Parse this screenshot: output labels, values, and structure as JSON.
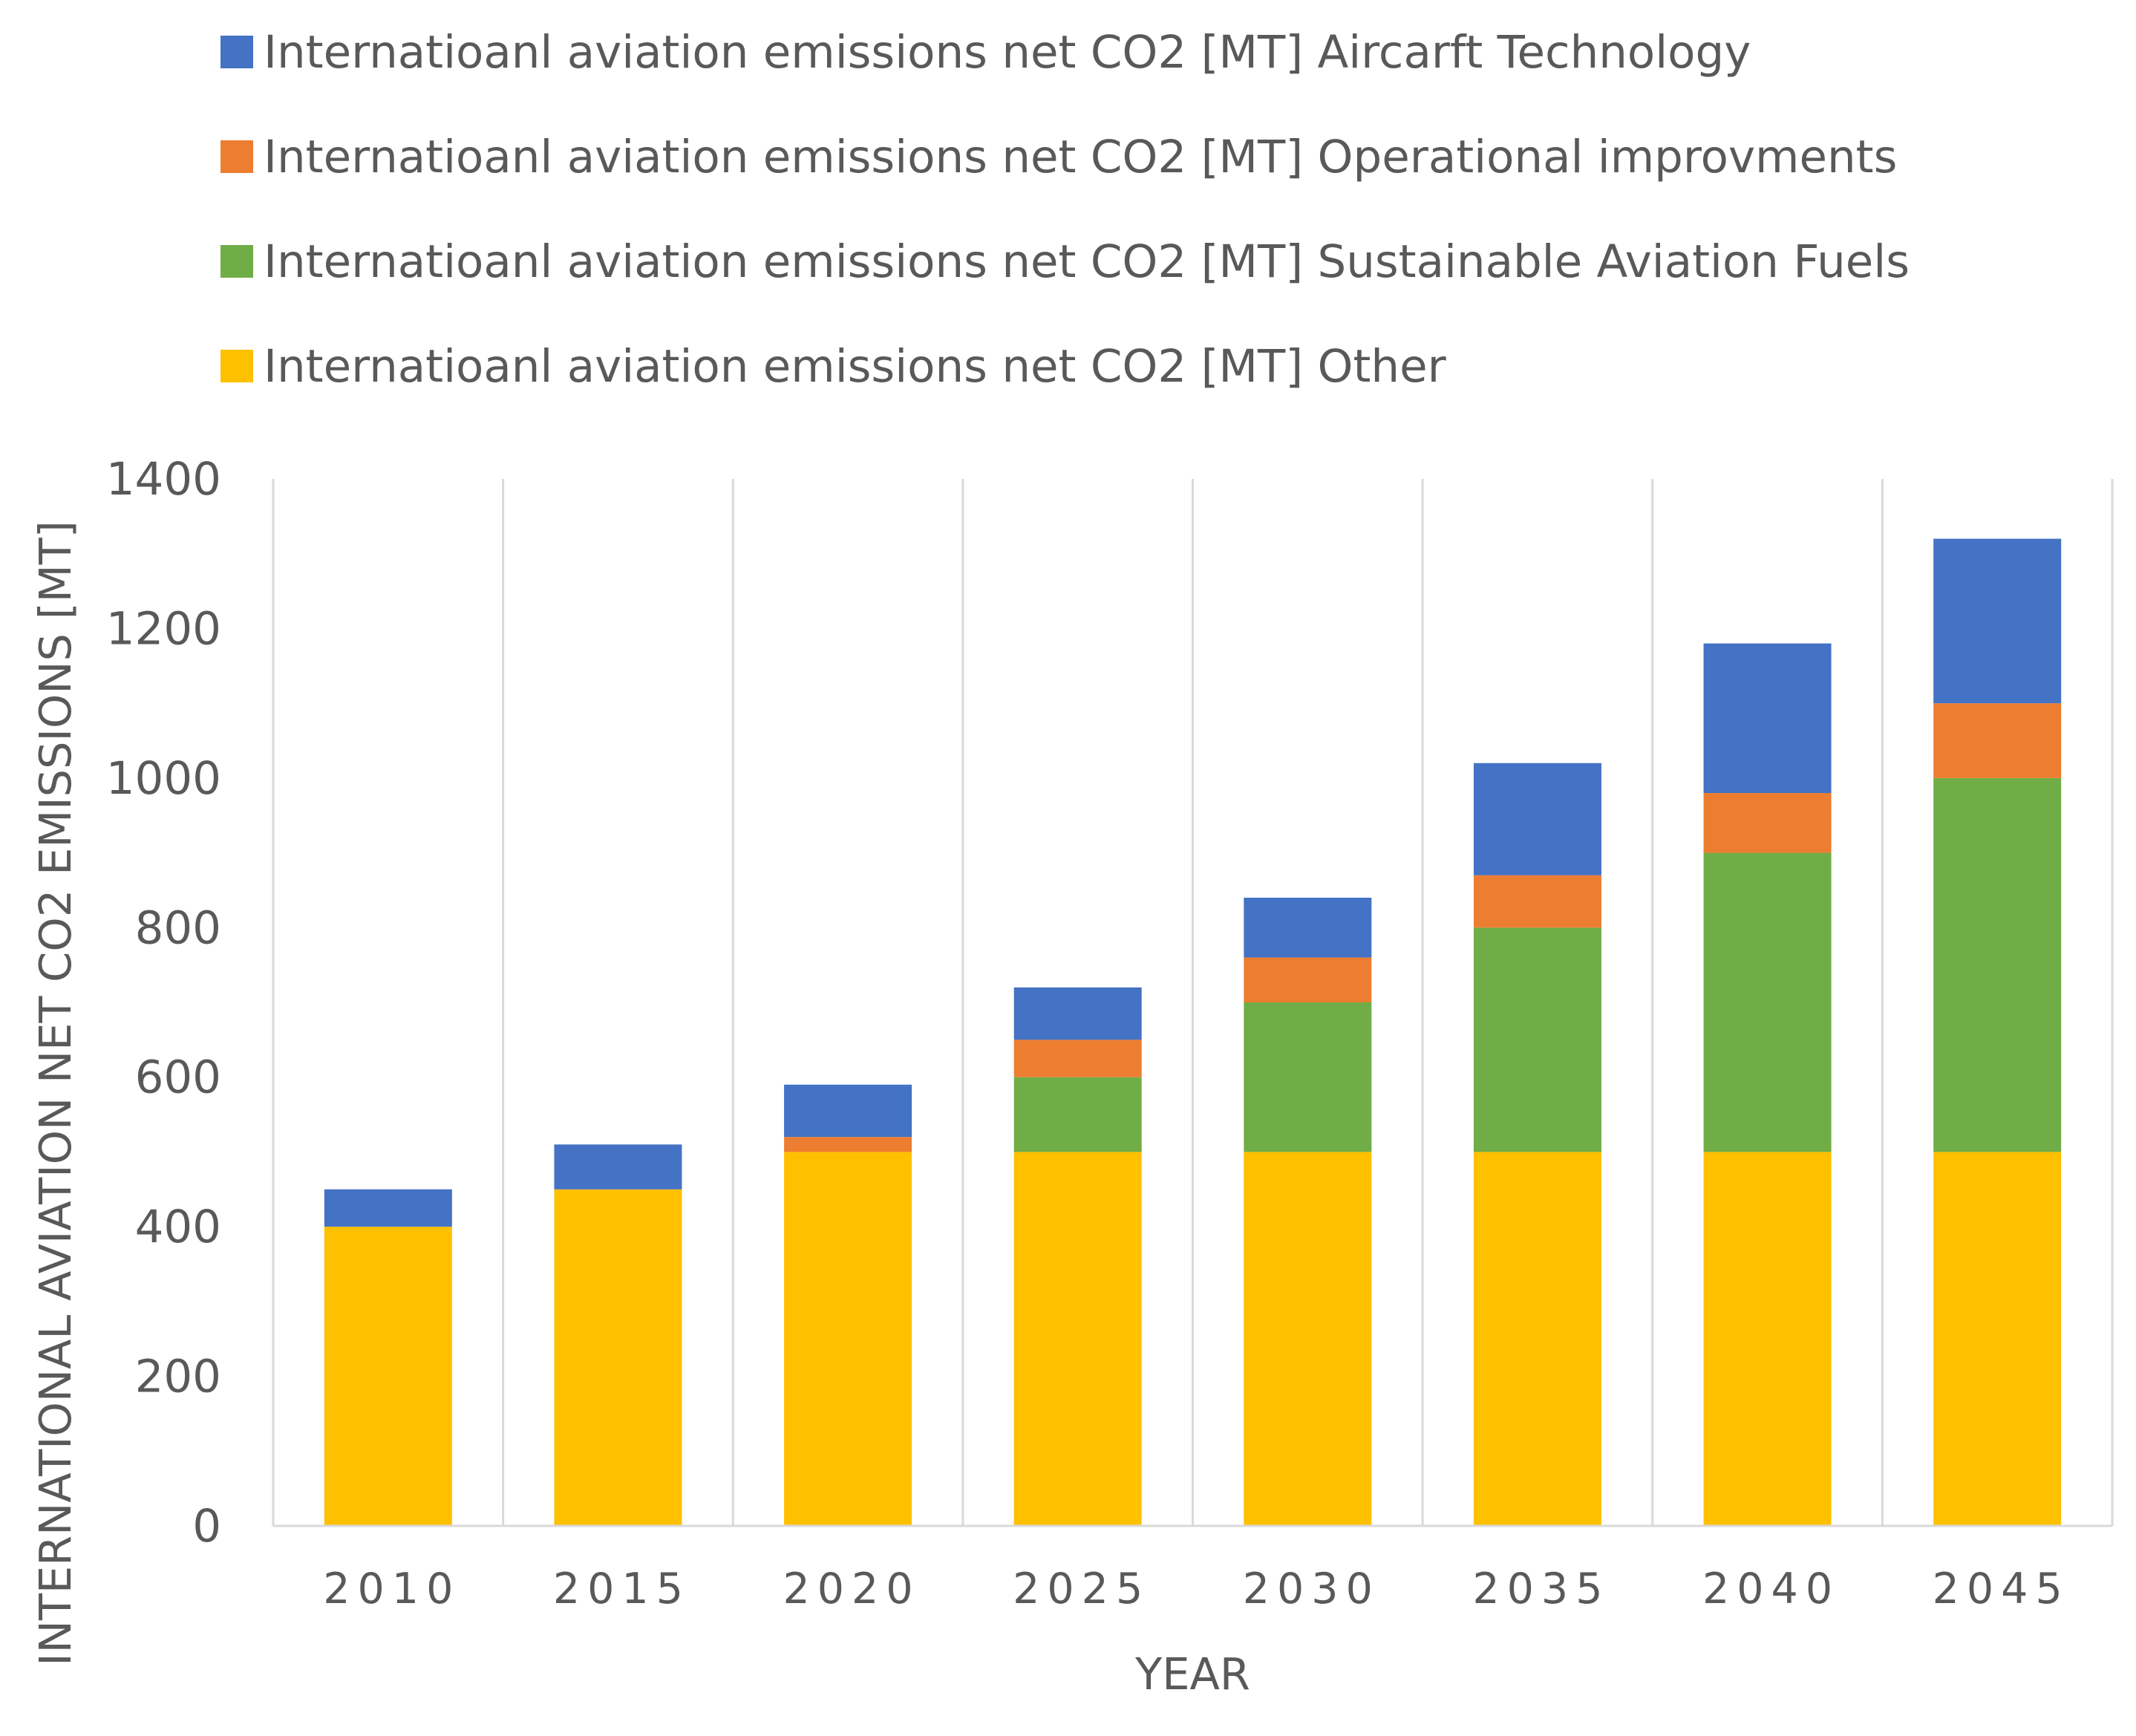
{
  "chart_data": {
    "type": "bar",
    "stacked": true,
    "title": "",
    "xlabel": "YEAR",
    "ylabel": "INTERNATIONAL AVIATION NET CO2 EMISSIONS [MT]",
    "ylim": [
      0,
      1400
    ],
    "yticks": [
      "0",
      "200",
      "400",
      "600",
      "800",
      "1000",
      "1200",
      "1400"
    ],
    "grid": "vertical",
    "legend_position": "top",
    "categories": [
      "2010",
      "2015",
      "2020",
      "2025",
      "2030",
      "2035",
      "2040",
      "2045"
    ],
    "series": [
      {
        "name": "Internatioanl aviation emissions net CO2 [MT] Other",
        "color": "#FFC000",
        "values": [
          400,
          450,
          500,
          500,
          500,
          500,
          500,
          500
        ]
      },
      {
        "name": "Internatioanl aviation emissions net CO2 [MT] Sustainable Aviation Fuels",
        "color": "#70AD47",
        "values": [
          0,
          0,
          0,
          100,
          200,
          300,
          400,
          500
        ]
      },
      {
        "name": "Internatioanl aviation emissions net CO2 [MT] Operational improvments",
        "color": "#ED7D31",
        "values": [
          0,
          0,
          20,
          50,
          60,
          70,
          80,
          100
        ]
      },
      {
        "name": "Internatioanl aviation emissions net CO2 [MT] Aircarft Technology",
        "color": "#4472C4",
        "values": [
          50,
          60,
          70,
          70,
          80,
          150,
          200,
          220
        ]
      }
    ],
    "legend_order": [
      3,
      2,
      1,
      0
    ]
  }
}
